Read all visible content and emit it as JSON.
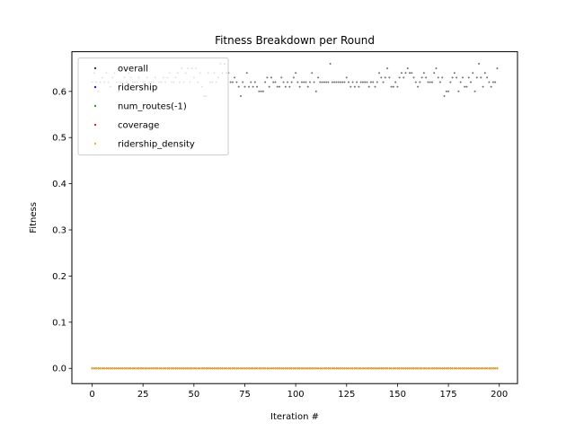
{
  "chart_data": {
    "type": "scatter",
    "title": "Fitness Breakdown per Round",
    "xlabel": "Iteration #",
    "ylabel": "Fitness",
    "xlim": [
      -9.95,
      208.95
    ],
    "ylim": [
      -0.033,
      0.686
    ],
    "xticks": [
      0,
      25,
      50,
      75,
      100,
      125,
      150,
      175,
      200
    ],
    "yticks": [
      0.0,
      0.1,
      0.2,
      0.3,
      0.4,
      0.5,
      0.6
    ],
    "grid": false,
    "legend_placement": "top-left",
    "x_range": [
      0,
      199
    ],
    "series": [
      {
        "name": "overall",
        "color": "#404040",
        "values": [
          0.62,
          0.64,
          0.62,
          0.6,
          0.62,
          0.63,
          0.62,
          0.64,
          0.62,
          0.61,
          0.63,
          0.64,
          0.62,
          0.6,
          0.62,
          0.62,
          0.63,
          0.62,
          0.64,
          0.63,
          0.62,
          0.62,
          0.62,
          0.63,
          0.61,
          0.62,
          0.62,
          0.63,
          0.62,
          0.62,
          0.62,
          0.63,
          0.61,
          0.62,
          0.62,
          0.63,
          0.62,
          0.63,
          0.64,
          0.62,
          0.62,
          0.63,
          0.64,
          0.62,
          0.65,
          0.62,
          0.64,
          0.65,
          0.62,
          0.65,
          0.63,
          0.65,
          0.62,
          0.64,
          0.61,
          0.59,
          0.59,
          0.64,
          0.62,
          0.62,
          0.64,
          0.62,
          0.63,
          0.66,
          0.64,
          0.66,
          0.64,
          0.64,
          0.62,
          0.62,
          0.63,
          0.62,
          0.61,
          0.59,
          0.62,
          0.61,
          0.64,
          0.61,
          0.62,
          0.61,
          0.62,
          0.61,
          0.6,
          0.6,
          0.6,
          0.62,
          0.63,
          0.61,
          0.63,
          0.62,
          0.62,
          0.61,
          0.61,
          0.63,
          0.62,
          0.61,
          0.62,
          0.61,
          0.62,
          0.63,
          0.64,
          0.62,
          0.61,
          0.62,
          0.62,
          0.62,
          0.61,
          0.62,
          0.64,
          0.62,
          0.6,
          0.63,
          0.62,
          0.62,
          0.62,
          0.62,
          0.62,
          0.66,
          0.62,
          0.62,
          0.62,
          0.62,
          0.62,
          0.62,
          0.62,
          0.63,
          0.62,
          0.61,
          0.62,
          0.61,
          0.62,
          0.61,
          0.62,
          0.62,
          0.62,
          0.62,
          0.61,
          0.62,
          0.62,
          0.61,
          0.62,
          0.64,
          0.63,
          0.62,
          0.63,
          0.65,
          0.63,
          0.61,
          0.61,
          0.62,
          0.61,
          0.63,
          0.64,
          0.63,
          0.64,
          0.65,
          0.64,
          0.64,
          0.63,
          0.62,
          0.61,
          0.62,
          0.63,
          0.64,
          0.63,
          0.62,
          0.62,
          0.62,
          0.64,
          0.65,
          0.63,
          0.62,
          0.63,
          0.59,
          0.6,
          0.6,
          0.62,
          0.63,
          0.64,
          0.63,
          0.6,
          0.62,
          0.63,
          0.61,
          0.61,
          0.63,
          0.62,
          0.64,
          0.6,
          0.63,
          0.66,
          0.63,
          0.61,
          0.64,
          0.63,
          0.62,
          0.61,
          0.62,
          0.62,
          0.65,
          0.66,
          0.62
        ]
      },
      {
        "name": "ridership",
        "color": "#1f1fd6",
        "constant": 0.0
      },
      {
        "name": "num_routes(-1)",
        "color": "#2ca02c",
        "constant": 0.0
      },
      {
        "name": "coverage",
        "color": "#d62728",
        "constant": 0.0
      },
      {
        "name": "ridership_density",
        "color": "#ffb400",
        "constant": 0.0
      }
    ]
  }
}
